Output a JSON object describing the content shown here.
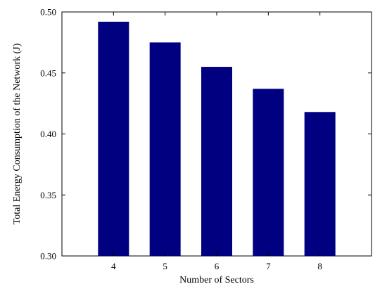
{
  "chart_data": {
    "type": "bar",
    "categories": [
      "4",
      "5",
      "6",
      "7",
      "8"
    ],
    "values": [
      0.492,
      0.475,
      0.455,
      0.437,
      0.418
    ],
    "xlabel": "Number of Sectors",
    "ylabel": "Total Energy Consumption of the Network (J)",
    "ylim": [
      0.3,
      0.5
    ],
    "yticks": [
      "0.30",
      "0.35",
      "0.40",
      "0.45",
      "0.50"
    ],
    "bar_color": "#000080",
    "grid": false,
    "legend": "none"
  }
}
